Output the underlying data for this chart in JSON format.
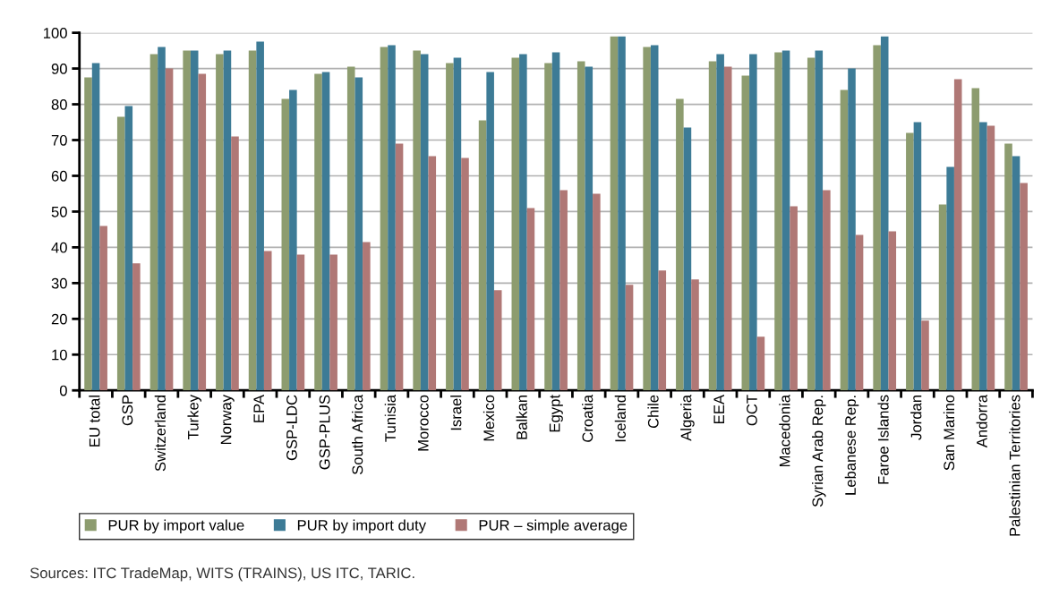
{
  "chart_data": {
    "type": "bar",
    "categories": [
      "EU total",
      "GSP",
      "Switzerland",
      "Turkey",
      "Norway",
      "EPA",
      "GSP-LDC",
      "GSP-PLUS",
      "South Africa",
      "Tunisia",
      "Morocco",
      "Israel",
      "Mexico",
      "Balkan",
      "Egypt",
      "Croatia",
      "Iceland",
      "Chile",
      "Algeria",
      "EEA",
      "OCT",
      "Macedonia",
      "Syrian Arab Rep.",
      "Lebanese Rep.",
      "Faroe Islands",
      "Jordan",
      "San Marino",
      "Andorra",
      "Palestinian Territories"
    ],
    "series": [
      {
        "name": "PUR by import value",
        "color": "#8d9c6f",
        "values": [
          87.5,
          76.5,
          94,
          95,
          94,
          95,
          81.5,
          88.5,
          90.5,
          96,
          95,
          91.5,
          75.5,
          93,
          91.5,
          92,
          99,
          96,
          81.5,
          92,
          88,
          94.5,
          93,
          84,
          96.5,
          72,
          52,
          84.5,
          69
        ]
      },
      {
        "name": "PUR by import duty",
        "color": "#3d7b96",
        "values": [
          91.5,
          79.5,
          96,
          95,
          95,
          97.5,
          84,
          89,
          87.5,
          96.5,
          94,
          93,
          89,
          94,
          94.5,
          90.5,
          99,
          96.5,
          73.5,
          94,
          94,
          95,
          95,
          90,
          99,
          75,
          62.5,
          75,
          65.5
        ]
      },
      {
        "name": "PUR – simple average",
        "color": "#b07876",
        "values": [
          46,
          35.5,
          90,
          88.5,
          71,
          39,
          38,
          38,
          41.5,
          69,
          65.5,
          65,
          28,
          51,
          56,
          55,
          29.5,
          33.5,
          31,
          90.5,
          15,
          51.5,
          56,
          43.5,
          44.5,
          19.5,
          87,
          74,
          58
        ]
      }
    ],
    "ylim": [
      0,
      100
    ],
    "yticks": [
      0,
      10,
      20,
      30,
      40,
      50,
      60,
      70,
      80,
      90,
      100
    ],
    "grid": "y",
    "legend": "bottom",
    "annotations": [
      "Sources: ITC TradeMap, WITS (TRAINS), US ITC, TARIC."
    ]
  }
}
